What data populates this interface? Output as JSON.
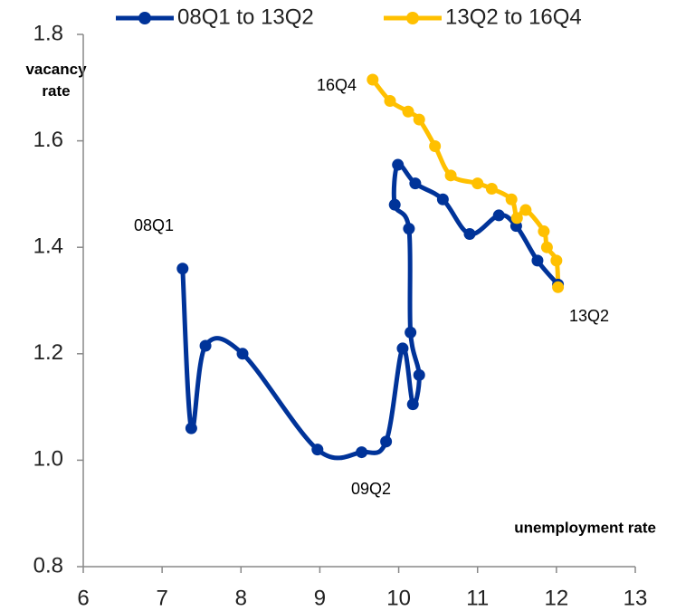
{
  "chart_data": {
    "type": "scatter",
    "x_label": "unemployment rate",
    "y_label": "vacancy rate",
    "annotations": [
      "08Q1",
      "09Q2",
      "13Q2",
      "16Q4"
    ],
    "xlim": [
      6,
      13
    ],
    "xticks": [
      6,
      7,
      8,
      9,
      10,
      11,
      12,
      13
    ],
    "ylim": [
      0.8,
      1.8
    ],
    "yticks": [
      0.8,
      {
        "value": 1.0,
        "label": "1.0"
      },
      1.2,
      1.4,
      1.6,
      1.8
    ],
    "legend": "top",
    "smooth": true,
    "series": [
      {
        "name": "08Q1 to 13Q2",
        "color": "#003399",
        "x": [
          7.26,
          7.37,
          7.55,
          8.02,
          8.97,
          9.53,
          9.84,
          10.05,
          10.18,
          10.26,
          10.15,
          10.13,
          9.95,
          9.99,
          10.21,
          10.56,
          10.9,
          11.27,
          11.49,
          11.76,
          12.02
        ],
        "values": [
          1.36,
          1.06,
          1.215,
          1.2,
          1.02,
          1.015,
          1.035,
          1.21,
          1.105,
          1.16,
          1.24,
          1.435,
          1.48,
          1.555,
          1.52,
          1.49,
          1.425,
          1.46,
          1.44,
          1.375,
          1.33
        ]
      },
      {
        "name": "13Q2 to 16Q4",
        "color": "#ffc000",
        "x": [
          12.02,
          12.0,
          11.88,
          11.84,
          11.61,
          11.5,
          11.43,
          11.18,
          11.0,
          10.66,
          10.46,
          10.26,
          10.12,
          9.89,
          9.67
        ],
        "values": [
          1.325,
          1.375,
          1.4,
          1.43,
          1.47,
          1.455,
          1.49,
          1.51,
          1.52,
          1.535,
          1.59,
          1.64,
          1.655,
          1.675,
          1.715
        ]
      }
    ]
  }
}
